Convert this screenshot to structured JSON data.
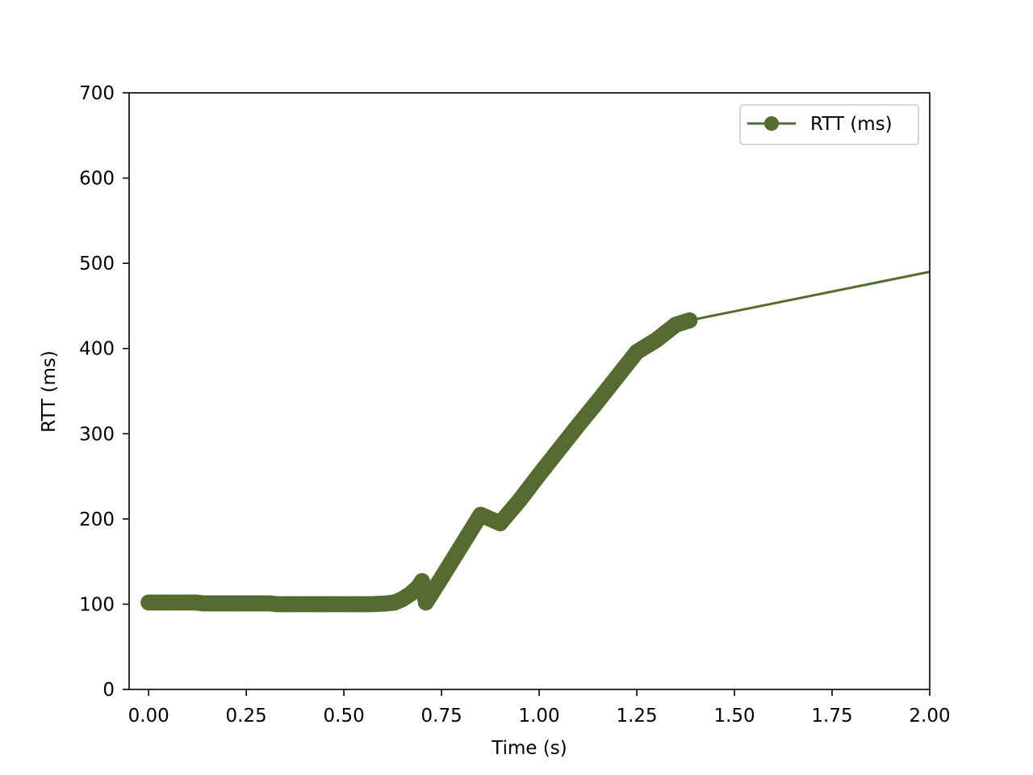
{
  "chart_data": {
    "type": "line",
    "title": "",
    "xlabel": "Time (s)",
    "ylabel": "RTT (ms)",
    "xlim": [
      -0.05,
      2.0
    ],
    "ylim": [
      0,
      700
    ],
    "x_ticks": [
      0.0,
      0.25,
      0.5,
      0.75,
      1.0,
      1.25,
      1.5,
      1.75,
      2.0
    ],
    "x_tick_labels": [
      "0.00",
      "0.25",
      "0.50",
      "0.75",
      "1.00",
      "1.25",
      "1.50",
      "1.75",
      "2.00"
    ],
    "y_ticks": [
      0,
      100,
      200,
      300,
      400,
      500,
      600,
      700
    ],
    "y_tick_labels": [
      "0",
      "100",
      "200",
      "300",
      "400",
      "500",
      "600",
      "700"
    ],
    "grid": false,
    "legend_position": "top-right",
    "colors": {
      "series": "#556b2f"
    },
    "series": [
      {
        "name": "RTT (ms)",
        "marker": "circle",
        "points": [
          [
            0.0,
            102
          ],
          [
            0.1,
            102
          ],
          [
            0.12,
            102
          ],
          [
            0.14,
            101
          ],
          [
            0.15,
            101
          ],
          [
            0.21,
            101
          ],
          [
            0.23,
            101
          ],
          [
            0.25,
            101
          ],
          [
            0.27,
            101
          ],
          [
            0.31,
            101
          ],
          [
            0.33,
            100
          ],
          [
            0.35,
            100
          ],
          [
            0.37,
            100
          ],
          [
            0.41,
            100
          ],
          [
            0.43,
            100
          ],
          [
            0.45,
            100
          ],
          [
            0.47,
            100
          ],
          [
            0.51,
            100
          ],
          [
            0.53,
            100
          ],
          [
            0.55,
            100
          ],
          [
            0.57,
            100
          ],
          [
            0.61,
            101
          ],
          [
            0.63,
            102
          ],
          [
            0.65,
            106
          ],
          [
            0.67,
            112
          ],
          [
            0.69,
            120
          ],
          [
            0.7,
            127
          ],
          [
            0.71,
            102
          ],
          [
            0.75,
            131
          ],
          [
            0.8,
            168
          ],
          [
            0.85,
            205
          ],
          [
            0.9,
            195
          ],
          [
            0.95,
            222
          ],
          [
            1.0,
            252
          ],
          [
            1.05,
            281
          ],
          [
            1.1,
            310
          ],
          [
            1.15,
            338
          ],
          [
            1.2,
            367
          ],
          [
            1.25,
            396
          ],
          [
            1.3,
            410
          ],
          [
            1.35,
            428
          ],
          [
            1.385,
            433
          ],
          [
            2.0,
            490
          ]
        ],
        "marker_until_x": 1.385
      }
    ]
  }
}
